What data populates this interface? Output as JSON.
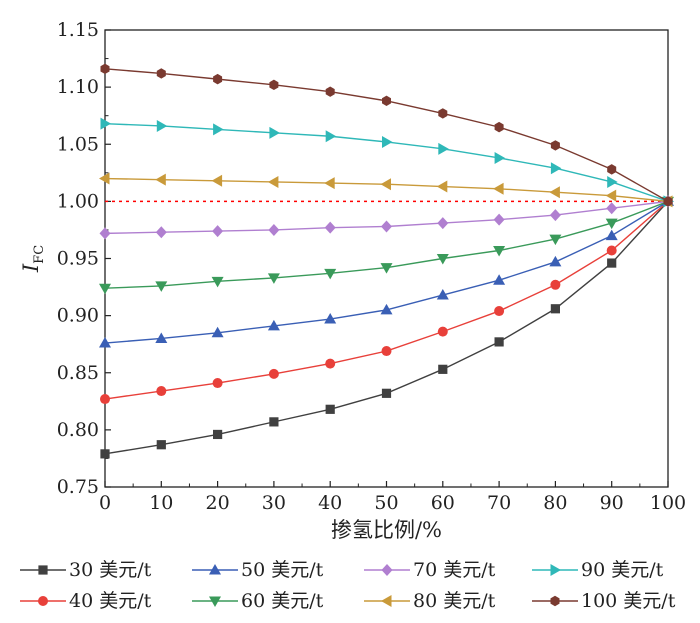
{
  "chart_data": {
    "type": "line",
    "xlabel": "掺氢比例/%",
    "ylabel": "I",
    "ylabel_sub": "FC",
    "xlim": [
      0,
      100
    ],
    "ylim": [
      0.75,
      1.15
    ],
    "x_ticks": [
      "0",
      "10",
      "20",
      "30",
      "40",
      "50",
      "60",
      "70",
      "80",
      "90",
      "100"
    ],
    "y_ticks": [
      "0.75",
      "0.80",
      "0.85",
      "0.90",
      "0.95",
      "1.00",
      "1.05",
      "1.10",
      "1.15"
    ],
    "reference_line": {
      "y": 1.0,
      "color": "#ff0000",
      "style": "dotted"
    },
    "x": [
      0,
      10,
      20,
      30,
      40,
      50,
      60,
      70,
      80,
      90,
      100
    ],
    "legend_placement": "bottom",
    "series": [
      {
        "name": "30 美元/t",
        "color": "#404040",
        "marker": "square",
        "values": [
          0.779,
          0.787,
          0.796,
          0.807,
          0.818,
          0.832,
          0.853,
          0.877,
          0.906,
          0.946,
          1.0
        ]
      },
      {
        "name": "40 美元/t",
        "color": "#e8403a",
        "marker": "circle",
        "values": [
          0.827,
          0.834,
          0.841,
          0.849,
          0.858,
          0.869,
          0.886,
          0.904,
          0.927,
          0.957,
          1.0
        ]
      },
      {
        "name": "50 美元/t",
        "color": "#3a5fb5",
        "marker": "triangle-up",
        "values": [
          0.876,
          0.88,
          0.885,
          0.891,
          0.897,
          0.905,
          0.918,
          0.931,
          0.947,
          0.97,
          1.0
        ]
      },
      {
        "name": "60 美元/t",
        "color": "#3a9a5a",
        "marker": "triangle-down",
        "values": [
          0.924,
          0.926,
          0.93,
          0.933,
          0.937,
          0.942,
          0.95,
          0.957,
          0.967,
          0.981,
          1.0
        ]
      },
      {
        "name": "70 美元/t",
        "color": "#b07fd0",
        "marker": "diamond",
        "values": [
          0.972,
          0.973,
          0.974,
          0.975,
          0.977,
          0.978,
          0.981,
          0.984,
          0.988,
          0.994,
          1.0
        ]
      },
      {
        "name": "80 美元/t",
        "color": "#c99a3a",
        "marker": "triangle-left",
        "values": [
          1.02,
          1.019,
          1.018,
          1.017,
          1.016,
          1.015,
          1.013,
          1.011,
          1.008,
          1.005,
          1.0
        ]
      },
      {
        "name": "90 美元/t",
        "color": "#2fb8b8",
        "marker": "triangle-right",
        "values": [
          1.068,
          1.066,
          1.063,
          1.06,
          1.057,
          1.052,
          1.046,
          1.038,
          1.029,
          1.017,
          1.0
        ]
      },
      {
        "name": "100 美元/t",
        "color": "#7a3a30",
        "marker": "hexagon",
        "values": [
          1.116,
          1.112,
          1.107,
          1.102,
          1.096,
          1.088,
          1.077,
          1.065,
          1.049,
          1.028,
          1.0
        ]
      }
    ]
  }
}
